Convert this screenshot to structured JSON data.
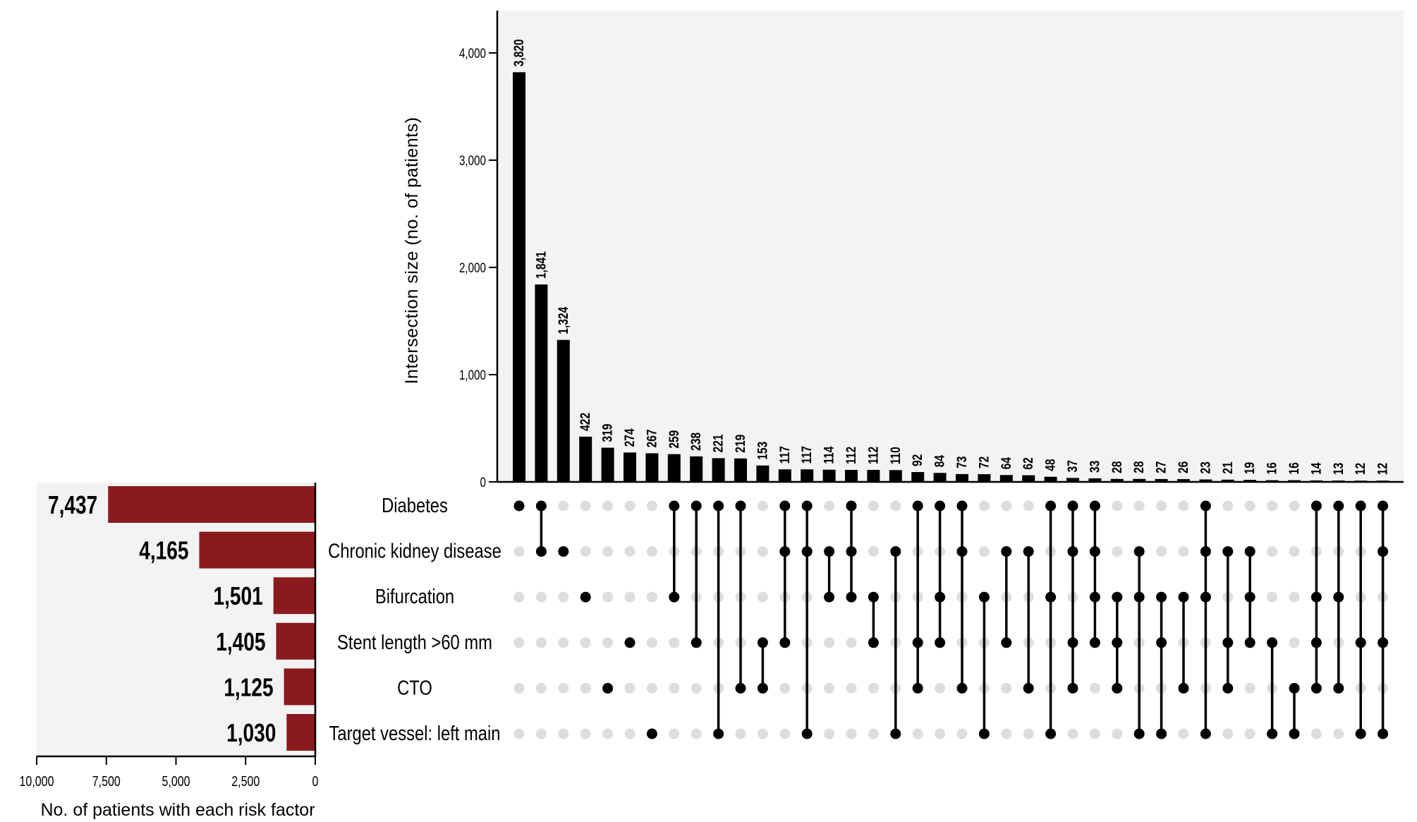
{
  "chart_data": {
    "type": "bar",
    "subtype": "upset",
    "sets": [
      "Diabetes",
      "Chronic kidney disease",
      "Bifurcation",
      "Stent length >60 mm",
      "CTO",
      "Target vessel: left main"
    ],
    "set_sizes": [
      7437,
      4165,
      1501,
      1405,
      1125,
      1030
    ],
    "set_size_labels": [
      "7,437",
      "4,165",
      "1,501",
      "1,405",
      "1,125",
      "1,030"
    ],
    "set_size_axis": {
      "xlabel": "No. of patients with each risk factor",
      "ticks": [
        10000,
        7500,
        5000,
        2500,
        0
      ],
      "tick_labels": [
        "10,000",
        "7,500",
        "5,000",
        "2,500",
        "0"
      ],
      "xlim": [
        10000,
        0
      ],
      "bar_color": "#8B1A1E"
    },
    "intersection_axis": {
      "ylabel": "Intersection size (no. of patients)",
      "ticks": [
        0,
        1000,
        2000,
        3000,
        4000
      ],
      "tick_labels": [
        "0",
        "1,000",
        "2,000",
        "3,000",
        "4,000"
      ],
      "ylim": [
        0,
        4400
      ],
      "bar_color": "#000000"
    },
    "intersections": [
      {
        "sets": [
          0
        ],
        "value": 3820,
        "label": "3,820"
      },
      {
        "sets": [
          0,
          1
        ],
        "value": 1841,
        "label": "1,841"
      },
      {
        "sets": [
          1
        ],
        "value": 1324,
        "label": "1,324"
      },
      {
        "sets": [
          2
        ],
        "value": 422,
        "label": "422"
      },
      {
        "sets": [
          4
        ],
        "value": 319,
        "label": "319"
      },
      {
        "sets": [
          3
        ],
        "value": 274,
        "label": "274"
      },
      {
        "sets": [
          5
        ],
        "value": 267,
        "label": "267"
      },
      {
        "sets": [
          0,
          2
        ],
        "value": 259,
        "label": "259"
      },
      {
        "sets": [
          0,
          3
        ],
        "value": 238,
        "label": "238"
      },
      {
        "sets": [
          0,
          5
        ],
        "value": 221,
        "label": "221"
      },
      {
        "sets": [
          0,
          4
        ],
        "value": 219,
        "label": "219"
      },
      {
        "sets": [
          3,
          4
        ],
        "value": 153,
        "label": "153"
      },
      {
        "sets": [
          0,
          1,
          3
        ],
        "value": 117,
        "label": "117"
      },
      {
        "sets": [
          0,
          1,
          5
        ],
        "value": 117,
        "label": "117"
      },
      {
        "sets": [
          1,
          2
        ],
        "value": 114,
        "label": "114"
      },
      {
        "sets": [
          0,
          1,
          2
        ],
        "value": 112,
        "label": "112"
      },
      {
        "sets": [
          2,
          3
        ],
        "value": 112,
        "label": "112"
      },
      {
        "sets": [
          1,
          5
        ],
        "value": 110,
        "label": "110"
      },
      {
        "sets": [
          0,
          3,
          4
        ],
        "value": 92,
        "label": "92"
      },
      {
        "sets": [
          0,
          2,
          3
        ],
        "value": 84,
        "label": "84"
      },
      {
        "sets": [
          0,
          1,
          4
        ],
        "value": 73,
        "label": "73"
      },
      {
        "sets": [
          2,
          5
        ],
        "value": 72,
        "label": "72"
      },
      {
        "sets": [
          1,
          3
        ],
        "value": 64,
        "label": "64"
      },
      {
        "sets": [
          1,
          4
        ],
        "value": 62,
        "label": "62"
      },
      {
        "sets": [
          0,
          2,
          5
        ],
        "value": 48,
        "label": "48"
      },
      {
        "sets": [
          0,
          1,
          3,
          4
        ],
        "value": 37,
        "label": "37"
      },
      {
        "sets": [
          0,
          1,
          2,
          3
        ],
        "value": 33,
        "label": "33"
      },
      {
        "sets": [
          2,
          3,
          4
        ],
        "value": 28,
        "label": "28"
      },
      {
        "sets": [
          1,
          2,
          5
        ],
        "value": 28,
        "label": "28"
      },
      {
        "sets": [
          2,
          3,
          5
        ],
        "value": 27,
        "label": "27"
      },
      {
        "sets": [
          2,
          4
        ],
        "value": 26,
        "label": "26"
      },
      {
        "sets": [
          0,
          1,
          2,
          5
        ],
        "value": 23,
        "label": "23"
      },
      {
        "sets": [
          1,
          3,
          4
        ],
        "value": 21,
        "label": "21"
      },
      {
        "sets": [
          1,
          2,
          3
        ],
        "value": 19,
        "label": "19"
      },
      {
        "sets": [
          3,
          5
        ],
        "value": 16,
        "label": "16"
      },
      {
        "sets": [
          4,
          5
        ],
        "value": 16,
        "label": "16"
      },
      {
        "sets": [
          0,
          2,
          3,
          4
        ],
        "value": 14,
        "label": "14"
      },
      {
        "sets": [
          0,
          2,
          4
        ],
        "value": 13,
        "label": "13"
      },
      {
        "sets": [
          0,
          3,
          5
        ],
        "value": 12,
        "label": "12"
      },
      {
        "sets": [
          0,
          1,
          3,
          5
        ],
        "value": 12,
        "label": "12"
      }
    ],
    "colors": {
      "panel_background": "#f3f3f3",
      "dot_active": "#000000",
      "dot_inactive": "#dddddd"
    },
    "grid": false,
    "legend": "none"
  }
}
